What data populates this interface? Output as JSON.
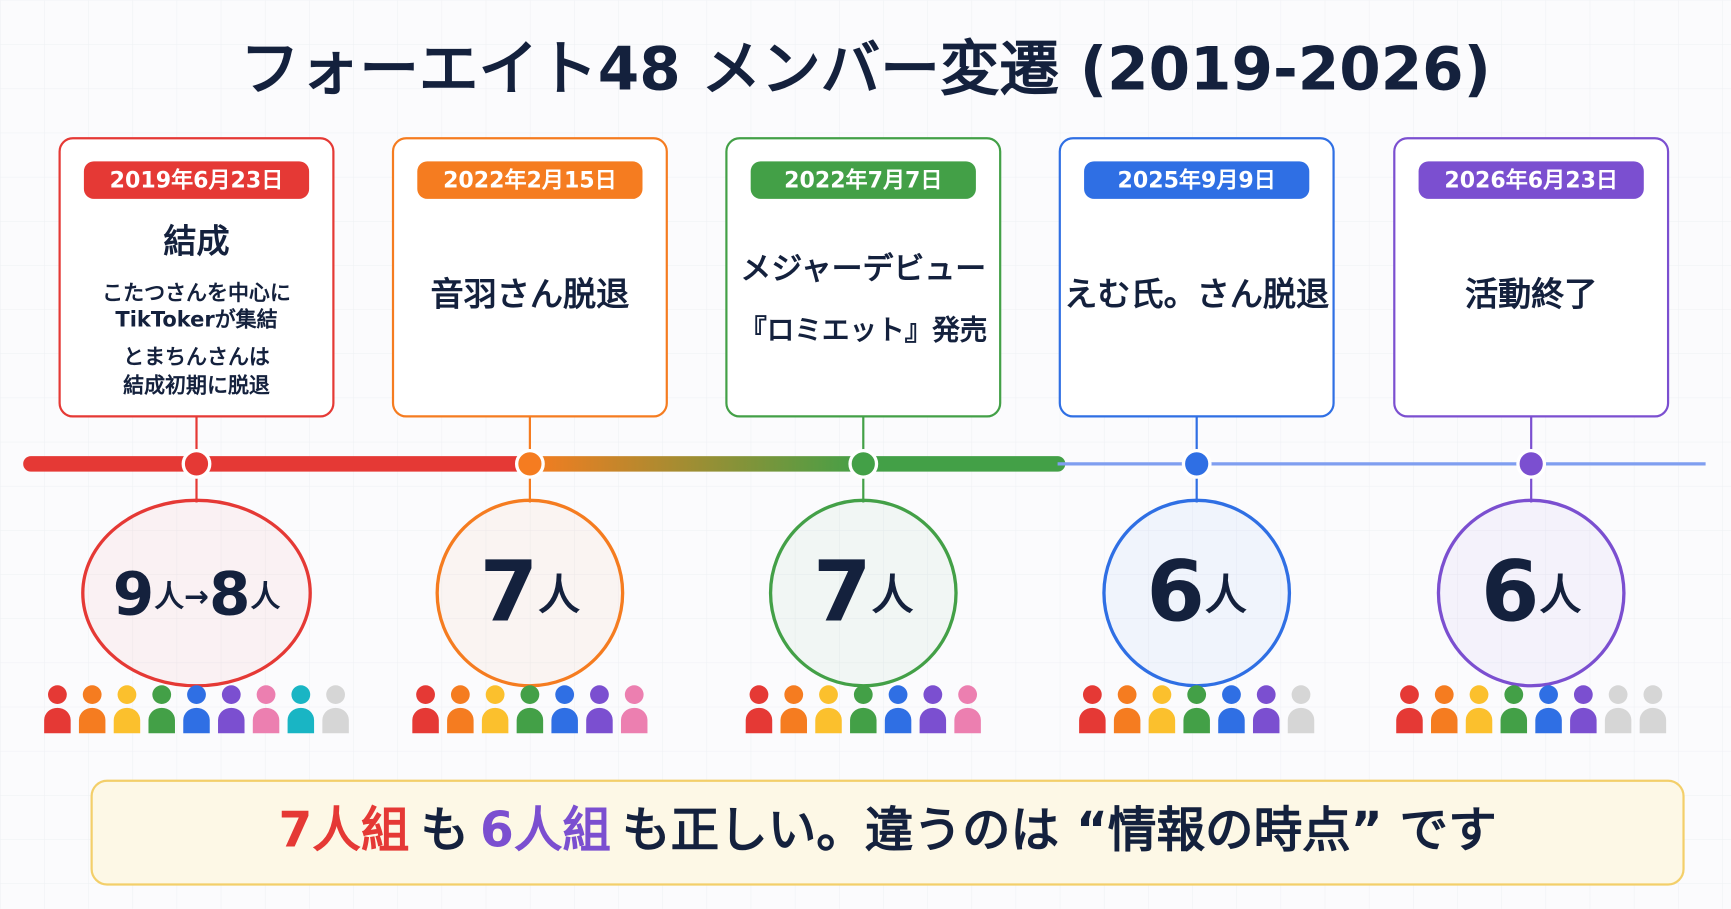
{
  "title": "フォーエイト48 メンバー変遷 (2019-2026)",
  "events": [
    {
      "date": "2019年6月23日",
      "color": "#e53935",
      "heading": "結成",
      "lines": [
        "こたつさんを中心に",
        "TikTokerが集結",
        "とまちんさんは",
        "結成初期に脱退"
      ],
      "count": "9人→8人",
      "icons": {
        "active": 8,
        "inactive": 1
      }
    },
    {
      "date": "2022年2月15日",
      "color": "#f57c20",
      "heading": "音羽さん脱退",
      "lines": [],
      "count": "7人",
      "icons": {
        "active": 7,
        "inactive": 0
      }
    },
    {
      "date": "2022年7月7日",
      "color": "#43a047",
      "heading": "メジャーデビュー",
      "lines": [
        "『ロミエット』発売"
      ],
      "count": "7人",
      "icons": {
        "active": 7,
        "inactive": 0
      }
    },
    {
      "date": "2025年9月9日",
      "color": "#2f6fe4",
      "heading": "えむ氏。さん脱退",
      "lines": [],
      "count": "6人",
      "icons": {
        "active": 6,
        "inactive": 1
      }
    },
    {
      "date": "2026年6月23日",
      "color": "#7b4fd0",
      "heading": "活動終了",
      "lines": [],
      "count": "6人",
      "icons": {
        "active": 6,
        "inactive": 2
      }
    }
  ],
  "member_colors": [
    "#e53935",
    "#f57c20",
    "#fbc02d",
    "#43a047",
    "#2f6fe4",
    "#7b4fd0",
    "#ec7fb0",
    "#19b5c4"
  ],
  "inactive_color": "#d6d6d6",
  "banner": [
    {
      "text": "7人組",
      "color": "#e53935"
    },
    {
      "text": "も",
      "color": "#14213d"
    },
    {
      "text": "6人組",
      "color": "#7b4fd0"
    },
    {
      "text": "も正しい。違うのは “情報の時点” です",
      "color": "#14213d"
    }
  ]
}
